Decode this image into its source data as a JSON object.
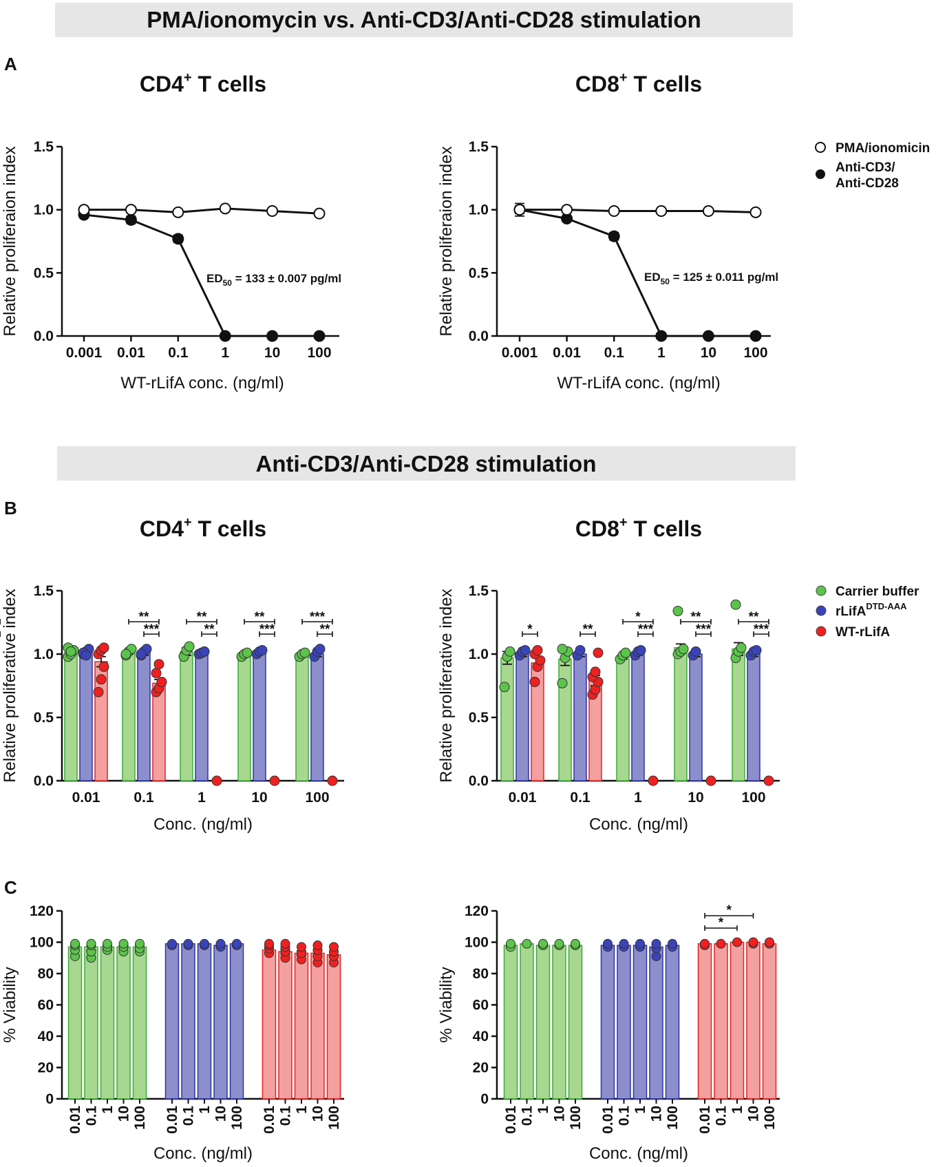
{
  "banners": {
    "top": "PMA/ionomycin vs. Anti-CD3/Anti-CD28 stimulation",
    "middle": "Anti-CD3/Anti-CD28 stimulation"
  },
  "panel_letters": {
    "a": "A",
    "b": "B",
    "c": "C"
  },
  "titles": {
    "cd4_base": "CD4",
    "cd8_base": "CD8",
    "sup": "+",
    "tail": " T cells"
  },
  "legend_a": {
    "open": "PMA/ionomicin",
    "filled_line1": "Anti-CD3/",
    "filled_line2": "Anti-CD28"
  },
  "legend_b": {
    "green": "Carrier buffer",
    "blue_base": "rLifA",
    "blue_sup": "DTD-AAA",
    "red": "WT-rLifA"
  },
  "ed50": {
    "prefix": "ED",
    "sub": "50",
    "cd4": " = 133 ± 0.007 pg/ml",
    "cd8": " = 125 ± 0.011 pg/ml"
  },
  "colors": {
    "green_fill": "#a8d890",
    "green_stroke": "#3caa3c",
    "green_dot": "#5cc44a",
    "blue_fill": "#8c8fcc",
    "blue_stroke": "#2c34a4",
    "blue_dot": "#3a44b8",
    "red_fill": "#f4a0a0",
    "red_stroke": "#e02222",
    "red_dot": "#ee2020",
    "banner_bg": "#e6e6e6"
  },
  "chart_data": [
    {
      "id": "A_CD4",
      "type": "line",
      "x": [
        "0.001",
        "0.01",
        "0.1",
        "1",
        "10",
        "100"
      ],
      "series": [
        {
          "name": "PMA/ionomicin",
          "values": [
            1.0,
            1.0,
            0.98,
            1.01,
            0.99,
            0.97
          ],
          "err": [
            0.01,
            0.01,
            0.01,
            0.01,
            0.01,
            0.01
          ]
        },
        {
          "name": "Anti-CD3/Anti-CD28",
          "values": [
            0.96,
            0.92,
            0.77,
            0.0,
            0.0,
            0.0
          ],
          "err": [
            0.01,
            0.03,
            0.03,
            0.0,
            0.0,
            0.0
          ]
        }
      ],
      "xlabel": "WT-rLifA conc. (ng/ml)",
      "ylabel": "Relative proliferaion index",
      "ylim": [
        0,
        1.5
      ],
      "yticks": [
        "0.0",
        "0.5",
        "1.0",
        "1.5"
      ]
    },
    {
      "id": "A_CD8",
      "type": "line",
      "x": [
        "0.001",
        "0.01",
        "0.1",
        "1",
        "10",
        "100"
      ],
      "series": [
        {
          "name": "PMA/ionomicin",
          "values": [
            1.0,
            1.0,
            0.99,
            0.99,
            0.99,
            0.98
          ],
          "err": [
            0.05,
            0.01,
            0.01,
            0.01,
            0.01,
            0.01
          ]
        },
        {
          "name": "Anti-CD3/Anti-CD28",
          "values": [
            1.0,
            0.93,
            0.79,
            0.0,
            0.0,
            0.0
          ],
          "err": [
            0.03,
            0.02,
            0.03,
            0.0,
            0.0,
            0.0
          ]
        }
      ],
      "xlabel": "WT-rLifA conc. (ng/ml)",
      "ylabel": "Relative proliferaion index",
      "ylim": [
        0,
        1.5
      ],
      "yticks": [
        "0.0",
        "0.5",
        "1.0",
        "1.5"
      ]
    },
    {
      "id": "B_CD4",
      "type": "bar",
      "categories": [
        "0.01",
        "0.1",
        "1",
        "10",
        "100"
      ],
      "series": [
        {
          "name": "Carrier buffer",
          "color": "green",
          "values": [
            1.01,
            1.01,
            1.02,
            1.0,
            1.0
          ],
          "err": [
            0.02,
            0.01,
            0.03,
            0.01,
            0.01
          ]
        },
        {
          "name": "rLifA DTD-AAA",
          "color": "blue",
          "values": [
            1.01,
            1.01,
            1.01,
            1.01,
            1.0
          ],
          "err": [
            0.02,
            0.02,
            0.01,
            0.01,
            0.02
          ]
        },
        {
          "name": "WT-rLifA",
          "color": "red",
          "values": [
            0.94,
            0.77,
            0.0,
            0.0,
            0.0
          ],
          "err": [
            0.04,
            0.03,
            0.0,
            0.0,
            0.0
          ]
        }
      ],
      "points": [
        [
          [
            0.98,
            1.0,
            1.03,
            1.05,
            1.02
          ],
          [
            1.0,
            1.02,
            1.04,
            1.01,
            0.99
          ],
          [
            0.7,
            0.8,
            0.9,
            1.0,
            1.03,
            1.05
          ]
        ],
        [
          [
            0.99,
            1.02,
            1.04,
            1.0
          ],
          [
            0.99,
            1.02,
            1.04,
            1.0
          ],
          [
            0.7,
            0.73,
            0.78,
            0.85,
            0.92
          ]
        ],
        [
          [
            0.98,
            1.03,
            1.06
          ],
          [
            1.0,
            1.01,
            1.02
          ],
          [
            0.0
          ]
        ],
        [
          [
            0.98,
            1.0,
            1.01
          ],
          [
            1.0,
            1.02,
            1.03
          ],
          [
            0.0
          ]
        ],
        [
          [
            0.98,
            1.0,
            1.01
          ],
          [
            0.98,
            1.02,
            1.04
          ],
          [
            0.0
          ]
        ]
      ],
      "significance": [
        [
          [],
          []
        ],
        [
          [
            "**",
            "g",
            "r"
          ],
          [
            "***",
            "b",
            "r"
          ]
        ],
        [
          [
            "**",
            "g",
            "r"
          ],
          [
            "**",
            "b",
            "r"
          ]
        ],
        [
          [
            "**",
            "g",
            "r"
          ],
          [
            "***",
            "b",
            "r"
          ]
        ],
        [
          [
            "***",
            "g",
            "r"
          ],
          [
            "**",
            "b",
            "r"
          ]
        ]
      ],
      "xlabel": "Conc. (ng/ml)",
      "ylabel": "Relative proliferative index",
      "ylim": [
        0,
        1.5
      ],
      "yticks": [
        "0.0",
        "0.5",
        "1.0",
        "1.5"
      ]
    },
    {
      "id": "B_CD8",
      "type": "bar",
      "categories": [
        "0.01",
        "0.1",
        "1",
        "10",
        "100"
      ],
      "series": [
        {
          "name": "Carrier buffer",
          "color": "green",
          "values": [
            0.97,
            0.96,
            0.98,
            1.05,
            1.04
          ],
          "err": [
            0.05,
            0.05,
            0.02,
            0.03,
            0.05
          ]
        },
        {
          "name": "rLifA DTD-AAA",
          "color": "blue",
          "values": [
            1.0,
            1.0,
            1.01,
            1.0,
            1.0
          ],
          "err": [
            0.02,
            0.02,
            0.02,
            0.02,
            0.02
          ]
        },
        {
          "name": "WT-rLifA",
          "color": "red",
          "values": [
            0.93,
            0.79,
            0.0,
            0.0,
            0.0
          ],
          "err": [
            0.04,
            0.04,
            0.0,
            0.0,
            0.0
          ]
        }
      ],
      "points": [
        [
          [
            0.74,
            0.98,
            1.02
          ],
          [
            0.99,
            1.02,
            1.03
          ],
          [
            0.78,
            0.9,
            0.95,
            1.0,
            1.03
          ]
        ],
        [
          [
            0.77,
            0.97,
            1.02,
            1.04
          ],
          [
            0.99,
            1.03
          ],
          [
            0.68,
            0.72,
            0.78,
            0.82,
            0.86,
            1.01
          ]
        ],
        [
          [
            0.96,
            0.99,
            1.01
          ],
          [
            0.99,
            1.02,
            1.03
          ],
          [
            0.0
          ]
        ],
        [
          [
            1.0,
            1.02,
            1.04,
            1.34
          ],
          [
            0.99,
            1.02
          ],
          [
            0.0
          ]
        ],
        [
          [
            0.97,
            1.02,
            1.05,
            1.39
          ],
          [
            0.99,
            1.02,
            1.03
          ],
          [
            0.0
          ]
        ]
      ],
      "significance": [
        [
          [
            "*",
            "b",
            "r"
          ]
        ],
        [
          [
            "**",
            "b",
            "r"
          ]
        ],
        [
          [
            "*",
            "g",
            "r"
          ],
          [
            "***",
            "b",
            "r"
          ]
        ],
        [
          [
            "**",
            "g",
            "r"
          ],
          [
            "***",
            "b",
            "r"
          ]
        ],
        [
          [
            "**",
            "g",
            "r"
          ],
          [
            "***",
            "b",
            "r"
          ]
        ]
      ],
      "xlabel": "Conc. (ng/ml)",
      "ylabel": "Relative proliferative index",
      "ylim": [
        0,
        1.5
      ],
      "yticks": [
        "0.0",
        "0.5",
        "1.0",
        "1.5"
      ]
    },
    {
      "id": "C_CD4",
      "type": "bar",
      "categories": [
        "0.01",
        "0.1",
        "1",
        "10",
        "100"
      ],
      "series": [
        {
          "name": "Carrier buffer",
          "color": "green",
          "values": [
            97,
            97,
            97,
            97,
            97
          ],
          "err": [
            2,
            2,
            1,
            1,
            1
          ]
        },
        {
          "name": "rLifA DTD-AAA",
          "color": "blue",
          "values": [
            99,
            99,
            99,
            98,
            99
          ],
          "err": [
            0.5,
            0.5,
            0.5,
            0.5,
            0.5
          ]
        },
        {
          "name": "WT-rLifA",
          "color": "red",
          "values": [
            95,
            94,
            93,
            93,
            92
          ],
          "err": [
            1.5,
            1.5,
            1.5,
            1.5,
            1.5
          ]
        }
      ],
      "points": [
        [
          [
            91,
            95,
            98,
            99
          ],
          [
            90,
            94,
            98,
            99
          ],
          [
            95,
            97,
            99
          ],
          [
            94,
            97,
            99
          ],
          [
            94,
            96,
            99
          ]
        ],
        [
          [
            98,
            99
          ],
          [
            98,
            99
          ],
          [
            98,
            99
          ],
          [
            97,
            99
          ],
          [
            98,
            99
          ]
        ],
        [
          [
            93,
            96,
            98,
            99
          ],
          [
            90,
            94,
            97,
            99
          ],
          [
            89,
            93,
            97
          ],
          [
            87,
            91,
            95,
            98
          ],
          [
            87,
            91,
            94,
            97
          ]
        ]
      ],
      "significance": [],
      "xlabel": "Conc. (ng/ml)",
      "ylabel": "% Viability",
      "ylim": [
        0,
        120
      ],
      "yticks": [
        "0",
        "20",
        "40",
        "60",
        "80",
        "100",
        "120"
      ]
    },
    {
      "id": "C_CD8",
      "type": "bar",
      "categories": [
        "0.01",
        "0.1",
        "1",
        "10",
        "100"
      ],
      "series": [
        {
          "name": "Carrier buffer",
          "color": "green",
          "values": [
            98,
            99,
            98,
            98,
            98
          ],
          "err": [
            0.5,
            0.5,
            0.5,
            0.5,
            0.5
          ]
        },
        {
          "name": "rLifA DTD-AAA",
          "color": "blue",
          "values": [
            98,
            98,
            98,
            97,
            98
          ],
          "err": [
            0.5,
            0.5,
            0.5,
            1.5,
            0.5
          ]
        },
        {
          "name": "WT-rLifA",
          "color": "red",
          "values": [
            99,
            99,
            100,
            100,
            99
          ],
          "err": [
            0.5,
            0.5,
            0.3,
            0.3,
            0.3
          ]
        }
      ],
      "points": [
        [
          [
            97,
            99
          ],
          [
            99
          ],
          [
            98,
            99
          ],
          [
            98,
            99
          ],
          [
            98,
            99
          ]
        ],
        [
          [
            97,
            99
          ],
          [
            97,
            99
          ],
          [
            97,
            99
          ],
          [
            91,
            96,
            99
          ],
          [
            97,
            99
          ]
        ],
        [
          [
            98,
            99
          ],
          [
            99
          ],
          [
            100
          ],
          [
            99,
            100
          ],
          [
            99,
            100
          ]
        ]
      ],
      "significance_c": [
        [
          "*",
          0,
          2
        ],
        [
          "*",
          0,
          3
        ]
      ],
      "xlabel": "Conc. (ng/ml)",
      "ylabel": "% Viability",
      "ylim": [
        0,
        120
      ],
      "yticks": [
        "0",
        "20",
        "40",
        "60",
        "80",
        "100",
        "120"
      ]
    }
  ]
}
